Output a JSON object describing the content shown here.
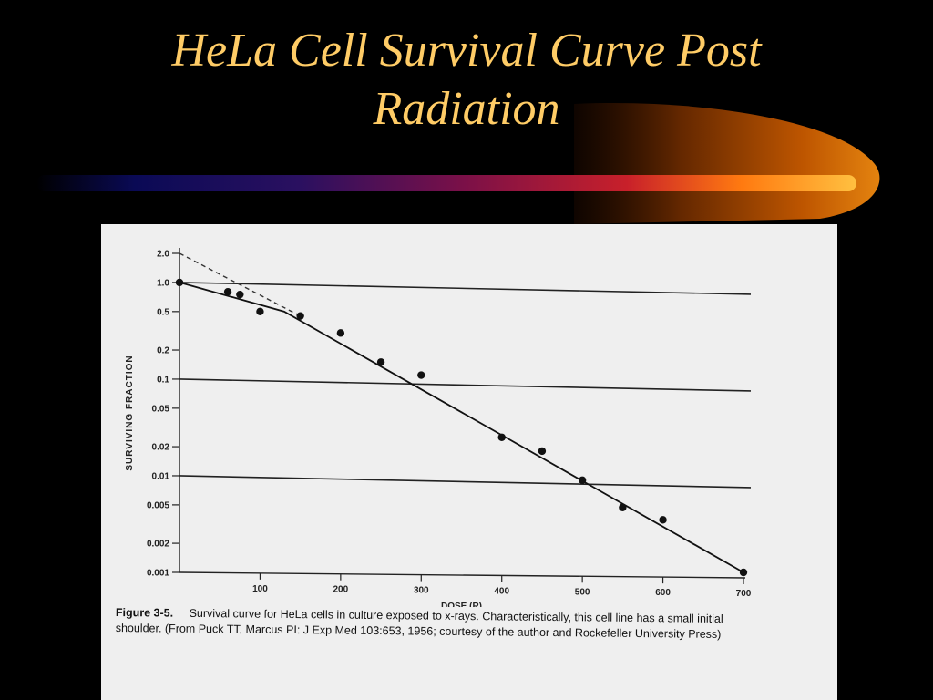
{
  "slide": {
    "title_line1": "HeLa Cell Survival Curve Post",
    "title_line2": "Radiation",
    "title_color": "#FFCC66",
    "background": "#000000"
  },
  "figure": {
    "label": "Figure 3-5.",
    "caption": "Survival curve for HeLa cells in culture exposed to x-rays. Characteristically, this cell line has a small initial shoulder. (From Puck TT, Marcus PI: J Exp Med 103:653, 1956; courtesy of the author and Rockefeller University Press)"
  },
  "chart_data": {
    "type": "scatter",
    "title": "",
    "xlabel": "DOSE (R)",
    "ylabel": "SURVIVING FRACTION",
    "yscale": "log",
    "xlim": [
      0,
      700
    ],
    "ylim": [
      0.001,
      2.0
    ],
    "x_ticks": [
      100,
      200,
      300,
      400,
      500,
      600,
      700
    ],
    "x_tick_labels": [
      "100",
      "200",
      "300",
      "400",
      "500",
      "600",
      "700"
    ],
    "y_ticks": [
      2.0,
      1.0,
      0.5,
      0.2,
      0.1,
      0.05,
      0.02,
      0.01,
      0.005,
      0.002,
      0.001
    ],
    "y_tick_labels": [
      "2.0",
      "1.0",
      "0.5",
      "0.2",
      "0.1",
      "0.05",
      "0.02",
      "0.01",
      "0.005",
      "0.002",
      "0.001"
    ],
    "reference_lines_y": [
      1.0,
      0.1,
      0.01
    ],
    "points": [
      {
        "x": 0,
        "y": 1.0
      },
      {
        "x": 60,
        "y": 0.8
      },
      {
        "x": 75,
        "y": 0.75
      },
      {
        "x": 100,
        "y": 0.5
      },
      {
        "x": 150,
        "y": 0.45
      },
      {
        "x": 200,
        "y": 0.3
      },
      {
        "x": 250,
        "y": 0.15
      },
      {
        "x": 300,
        "y": 0.11
      },
      {
        "x": 400,
        "y": 0.025
      },
      {
        "x": 450,
        "y": 0.018
      },
      {
        "x": 500,
        "y": 0.009
      },
      {
        "x": 550,
        "y": 0.0047
      },
      {
        "x": 600,
        "y": 0.0035
      },
      {
        "x": 700,
        "y": 0.001
      }
    ],
    "fit_line": [
      {
        "x": 0,
        "y": 1.0
      },
      {
        "x": 130,
        "y": 0.5
      },
      {
        "x": 700,
        "y": 0.001
      }
    ],
    "extrapolation_line": [
      {
        "x": 0,
        "y": 2.0
      },
      {
        "x": 150,
        "y": 0.45
      }
    ]
  }
}
